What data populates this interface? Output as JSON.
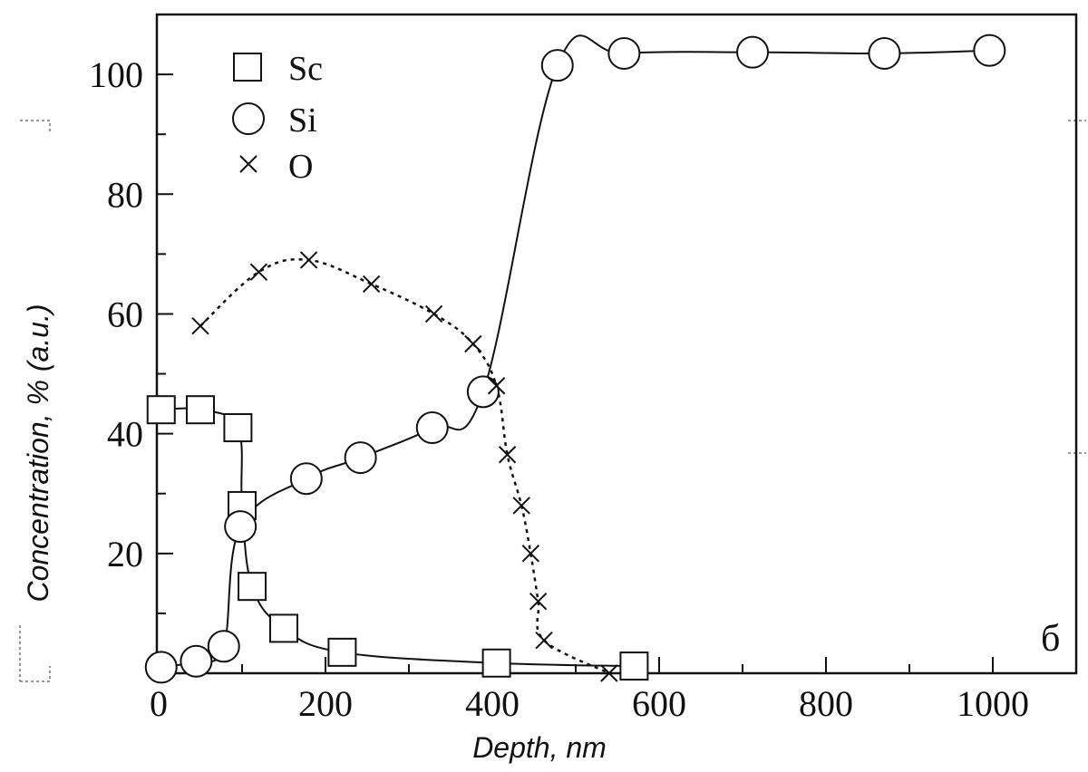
{
  "chart_data": {
    "type": "line",
    "xlabel": "Depth, nm",
    "ylabel": "Concentration, % (a.u.)",
    "panel_label": "б",
    "xlim": [
      0,
      1100
    ],
    "ylim": [
      0,
      110
    ],
    "xticks": [
      0,
      200,
      400,
      600,
      800,
      1000
    ],
    "yticks": [
      20,
      40,
      60,
      80,
      100
    ],
    "xtick_labels": [
      "0",
      "200",
      "400",
      "600",
      "800",
      "1000"
    ],
    "ytick_labels": [
      "20",
      "40",
      "60",
      "80",
      "100"
    ],
    "legend_position": "top-left",
    "grid": false,
    "series": [
      {
        "name": "Sc",
        "marker": "square",
        "line": "solid",
        "color": "#111111",
        "points": [
          [
            3,
            44
          ],
          [
            50,
            44
          ],
          [
            95,
            41
          ],
          [
            100,
            28
          ],
          [
            112,
            14.5
          ],
          [
            150,
            7.5
          ],
          [
            220,
            3.5
          ],
          [
            405,
            1.7
          ],
          [
            570,
            1.2
          ]
        ]
      },
      {
        "name": "Si",
        "marker": "circle",
        "line": "solid",
        "color": "#111111",
        "points": [
          [
            3,
            1
          ],
          [
            45,
            2
          ],
          [
            78,
            4.5
          ],
          [
            98,
            24.5
          ],
          [
            177,
            32.5
          ],
          [
            242,
            36
          ],
          [
            328,
            41
          ],
          [
            389,
            47
          ],
          [
            478,
            101.5
          ],
          [
            558,
            103.5
          ],
          [
            712,
            103.7
          ],
          [
            870,
            103.5
          ],
          [
            996,
            104
          ]
        ]
      },
      {
        "name": "O",
        "marker": "x",
        "line": "dotted",
        "color": "#111111",
        "points": [
          [
            50,
            58
          ],
          [
            120,
            67
          ],
          [
            180,
            69
          ],
          [
            255,
            65
          ],
          [
            330,
            60
          ],
          [
            377,
            55
          ],
          [
            405,
            48
          ],
          [
            418,
            36.5
          ],
          [
            435,
            28
          ],
          [
            446,
            20
          ],
          [
            455,
            12
          ],
          [
            462,
            5.5
          ],
          [
            540,
            0
          ]
        ]
      }
    ]
  }
}
